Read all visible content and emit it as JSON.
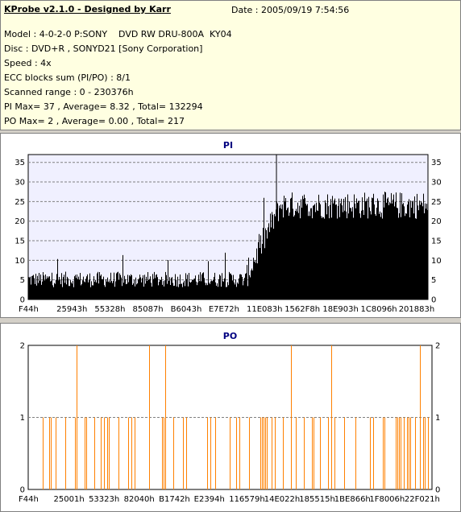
{
  "header": {
    "title": "KProbe v2.1.0 - Designed by Karr",
    "date": "Date : 2005/09/19 7:54:56",
    "model": "Model : 4-0-2-0 P:SONY    DVD RW DRU-800A  KY04",
    "disc": "Disc : DVD+R , SONYD21 [Sony Corporation]",
    "speed": "Speed : 4x",
    "ecc": "ECC blocks sum (PI/PO) : 8/1",
    "range": "Scanned range : 0 - 230376h",
    "pi_stats": "PI Max= 37 , Average= 8.32 , Total= 132294",
    "po_stats": "PO Max= 2 , Average= 0.00 , Total= 217"
  },
  "chart_data": [
    {
      "type": "bar",
      "title": "PI",
      "ylim": [
        0,
        37
      ],
      "yticks": [
        0,
        5,
        10,
        15,
        20,
        25,
        30,
        35
      ],
      "xtick_labels": [
        "F44h",
        "25943h",
        "55328h",
        "85087h",
        "B6043h",
        "E7E72h",
        "11E083h",
        "1562F8h",
        "18E903h",
        "1C8096h",
        "201883h"
      ],
      "grid": true,
      "bar_color": "#000000",
      "segments": [
        {
          "x_from": "F44h",
          "x_to": "11E083h",
          "level": 5,
          "spread": 2.5
        },
        {
          "x_from": "11E083h",
          "x_to": "1562F8h",
          "level_start": 5,
          "level_end": 24,
          "spread": 4
        },
        {
          "x_from": "1562F8h",
          "x_to": "230376h",
          "level": 24,
          "spread": 4
        }
      ],
      "max": 37
    },
    {
      "type": "bar",
      "title": "PO",
      "ylim": [
        0,
        2
      ],
      "yticks": [
        0,
        1,
        2
      ],
      "xtick_labels": [
        "F44h",
        "25001h",
        "53323h",
        "82040h",
        "B1742h",
        "E2394h",
        "116579h",
        "14E022h",
        "185515h",
        "1BE866h",
        "1F8006h",
        "22F021h"
      ],
      "grid": true,
      "bar_color": "#ff8000",
      "value_two_positions": [
        0.12,
        0.3,
        0.34,
        0.65,
        0.75,
        0.97
      ]
    }
  ]
}
